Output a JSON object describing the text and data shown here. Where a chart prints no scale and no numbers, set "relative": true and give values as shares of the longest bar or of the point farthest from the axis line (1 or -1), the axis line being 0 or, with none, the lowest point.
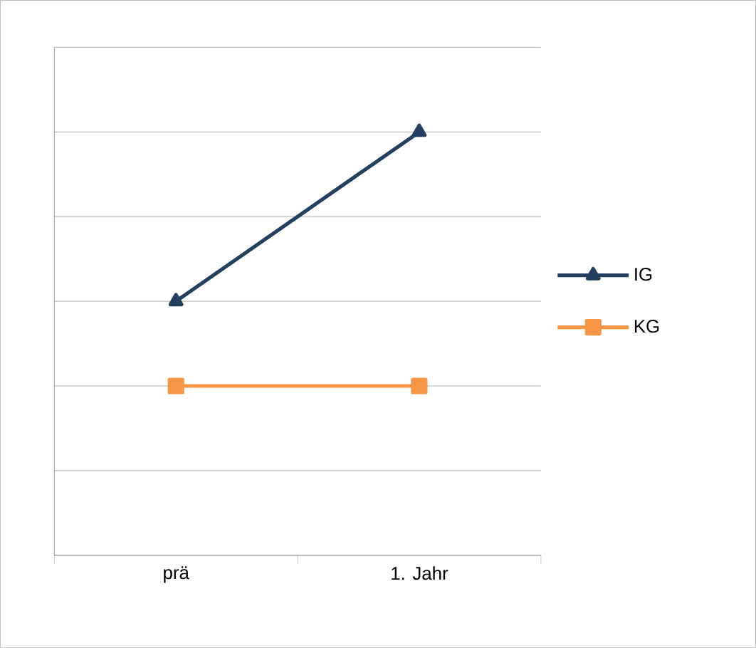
{
  "chart_data": {
    "type": "line",
    "relative": true,
    "categories": [
      "prä",
      "1.  Jahr"
    ],
    "series": [
      {
        "name": "IG",
        "color": "#243f60",
        "marker": "triangle",
        "values": [
          0.6,
          1
        ]
      },
      {
        "name": "KG",
        "color": "#f79646",
        "marker": "square",
        "values": [
          0.4,
          0.4
        ]
      }
    ],
    "grid": "y",
    "legend": "right",
    "line_style": "solid"
  }
}
